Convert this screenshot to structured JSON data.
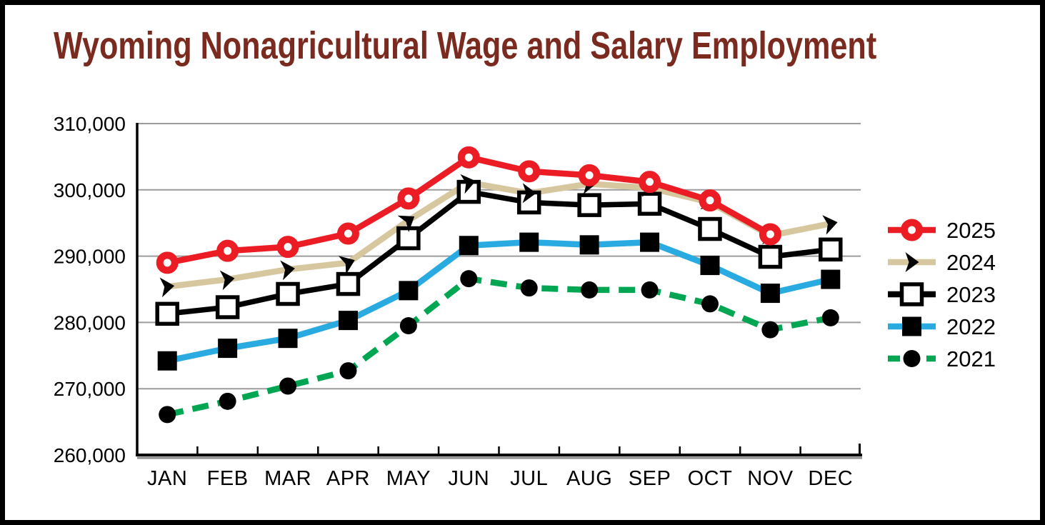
{
  "page": {
    "title": "Wyoming Nonagricultural Wage and Salary Employment"
  },
  "colors": {
    "title_text": "#7A2A1E",
    "axis": "#000000",
    "axis_shadow": "#8C8C8C",
    "gridline": "#9C9C9C",
    "label_text": "#000000",
    "series_2025": "#EC1C24",
    "series_2024": "#D6C79E",
    "series_2023": "#000000",
    "series_2022": "#29ABE2",
    "series_2021": "#00A651",
    "marker_black": "#000000",
    "marker_fill_white": "#FFFFFF"
  },
  "chart_data": {
    "type": "line",
    "title": "Wyoming Nonagricultural Wage and Salary Employment",
    "xlabel": "",
    "ylabel": "",
    "ylim": [
      260000,
      310000
    ],
    "ytick_step": 10000,
    "y_axis_tick_labels": [
      "260,000",
      "270,000",
      "280,000",
      "290,000",
      "300,000",
      "310,000"
    ],
    "grid": "horizontal",
    "legend_position": "right",
    "categories": [
      "JAN",
      "FEB",
      "MAR",
      "APR",
      "MAY",
      "JUN",
      "JUL",
      "AUG",
      "SEP",
      "OCT",
      "NOV",
      "DEC"
    ],
    "series": [
      {
        "name": "2025",
        "color": "#EC1C24",
        "marker": "open-circle",
        "marker_color": "#EC1C24",
        "dashed": false,
        "values": [
          289000,
          290800,
          291400,
          293400,
          298700,
          304900,
          302800,
          302200,
          301200,
          298400,
          293300,
          null
        ]
      },
      {
        "name": "2024",
        "color": "#D6C79E",
        "marker": "arrow",
        "marker_color": "#000000",
        "dashed": false,
        "values": [
          285400,
          286500,
          288000,
          289000,
          295400,
          301100,
          299500,
          300900,
          300300,
          298100,
          293100,
          294900
        ]
      },
      {
        "name": "2023",
        "color": "#000000",
        "marker": "open-square",
        "marker_color": "#000000",
        "dashed": false,
        "values": [
          281300,
          282300,
          284300,
          285800,
          292700,
          299700,
          298100,
          297700,
          297900,
          294100,
          289900,
          291000
        ]
      },
      {
        "name": "2022",
        "color": "#29ABE2",
        "marker": "filled-square",
        "marker_color": "#000000",
        "dashed": false,
        "values": [
          274200,
          276100,
          277600,
          280300,
          284800,
          291600,
          292100,
          291700,
          292100,
          288600,
          284400,
          286500
        ]
      },
      {
        "name": "2021",
        "color": "#00A651",
        "marker": "filled-circle",
        "marker_color": "#000000",
        "dashed": true,
        "values": [
          266100,
          268100,
          270400,
          272700,
          279500,
          286600,
          285200,
          284900,
          284900,
          282800,
          278900,
          280700
        ]
      }
    ]
  }
}
